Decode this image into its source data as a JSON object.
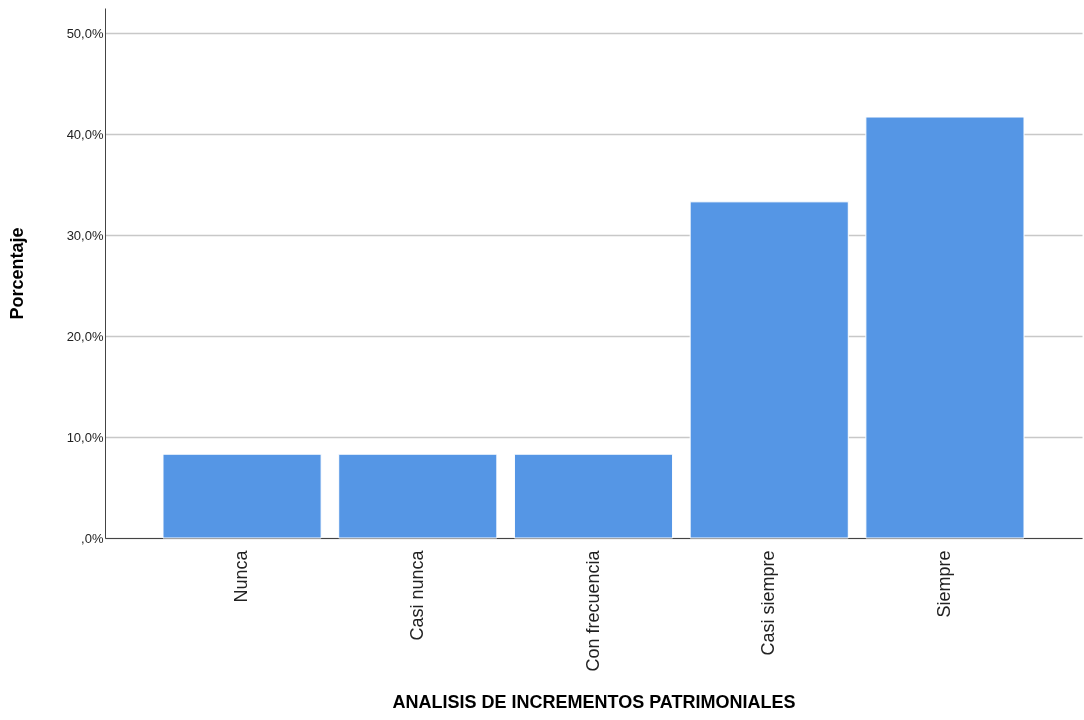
{
  "chart_data": {
    "type": "bar",
    "xlabel": "ANALISIS DE INCREMENTOS PATRIMONIALES",
    "ylabel": "Porcentaje",
    "categories": [
      "Nunca",
      "Casi nunca",
      "Con frecuencia",
      "Casi siempre",
      "Siempre"
    ],
    "values": [
      8.3,
      8.3,
      8.3,
      33.3,
      41.7
    ],
    "color": "#5596e5",
    "ylim": [
      0,
      52.5
    ],
    "yticks": [
      {
        "value": 0,
        "label": ",0%"
      },
      {
        "value": 10,
        "label": "10,0%"
      },
      {
        "value": 20,
        "label": "20,0%"
      },
      {
        "value": 30,
        "label": "30,0%"
      },
      {
        "value": 40,
        "label": "40,0%"
      },
      {
        "value": 50,
        "label": "50,0%"
      }
    ],
    "grid": "y"
  }
}
